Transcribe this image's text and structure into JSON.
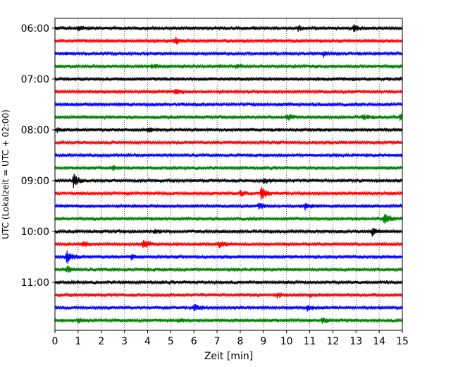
{
  "chart_data": {
    "type": "line",
    "title": "",
    "xlabel": "Zeit  [min]",
    "ylabel": "UTC (Lokalzeit = UTC + 02:00)",
    "xlim": [
      0,
      15
    ],
    "x_ticks": [
      "0",
      "1",
      "2",
      "3",
      "4",
      "5",
      "6",
      "7",
      "8",
      "9",
      "10",
      "11",
      "12",
      "13",
      "14",
      "15"
    ],
    "y_tick_labels": [
      "06:00",
      "07:00",
      "08:00",
      "09:00",
      "10:00",
      "11:00"
    ],
    "grid": "vertical dotted lines at each minute",
    "trace_colors": [
      "#000000",
      "#ff0000",
      "#0000ff",
      "#008000"
    ],
    "traces": [
      {
        "start": "06:00",
        "color": "#000000",
        "events": [
          [
            1.0,
            0.25
          ],
          [
            10.5,
            0.3
          ],
          [
            12.9,
            0.55
          ]
        ]
      },
      {
        "start": "06:15",
        "color": "#ff0000",
        "events": [
          [
            5.2,
            0.5
          ]
        ]
      },
      {
        "start": "06:30",
        "color": "#0000ff",
        "events": [
          [
            11.6,
            0.35
          ]
        ]
      },
      {
        "start": "06:45",
        "color": "#008000",
        "events": [
          [
            4.2,
            0.3
          ],
          [
            7.8,
            0.25
          ]
        ]
      },
      {
        "start": "07:00",
        "color": "#000000",
        "events": []
      },
      {
        "start": "07:15",
        "color": "#ff0000",
        "events": [
          [
            5.2,
            0.3
          ]
        ]
      },
      {
        "start": "07:30",
        "color": "#0000ff",
        "events": []
      },
      {
        "start": "07:45",
        "color": "#008000",
        "events": [
          [
            10.0,
            0.5
          ],
          [
            13.3,
            0.35
          ],
          [
            14.9,
            0.6
          ]
        ]
      },
      {
        "start": "08:00",
        "color": "#000000",
        "events": [
          [
            0.1,
            0.3
          ],
          [
            4.0,
            0.35
          ]
        ]
      },
      {
        "start": "08:15",
        "color": "#ff0000",
        "events": []
      },
      {
        "start": "08:30",
        "color": "#0000ff",
        "events": []
      },
      {
        "start": "08:45",
        "color": "#008000",
        "events": [
          [
            2.5,
            0.25
          ]
        ]
      },
      {
        "start": "09:00",
        "color": "#000000",
        "events": [
          [
            0.8,
            1.0
          ],
          [
            9.0,
            0.35
          ]
        ]
      },
      {
        "start": "09:15",
        "color": "#ff0000",
        "events": [
          [
            8.9,
            1.0
          ],
          [
            8.0,
            0.4
          ]
        ]
      },
      {
        "start": "09:30",
        "color": "#0000ff",
        "events": [
          [
            8.8,
            0.45
          ],
          [
            10.8,
            0.45
          ]
        ]
      },
      {
        "start": "09:45",
        "color": "#008000",
        "events": [
          [
            14.2,
            1.0
          ]
        ]
      },
      {
        "start": "10:00",
        "color": "#000000",
        "events": [
          [
            4.3,
            0.3
          ],
          [
            13.7,
            0.55
          ]
        ]
      },
      {
        "start": "10:15",
        "color": "#ff0000",
        "events": [
          [
            1.2,
            0.5
          ],
          [
            3.8,
            0.65
          ],
          [
            7.1,
            0.4
          ]
        ]
      },
      {
        "start": "10:30",
        "color": "#0000ff",
        "events": [
          [
            0.5,
            1.0
          ],
          [
            3.3,
            0.35
          ]
        ]
      },
      {
        "start": "10:45",
        "color": "#008000",
        "events": [
          [
            0.5,
            0.45
          ]
        ]
      },
      {
        "start": "11:00",
        "color": "#000000",
        "events": []
      },
      {
        "start": "11:15",
        "color": "#ff0000",
        "events": [
          [
            9.6,
            0.3
          ],
          [
            11.0,
            0.3
          ]
        ]
      },
      {
        "start": "11:30",
        "color": "#0000ff",
        "events": [
          [
            6.0,
            0.6
          ],
          [
            10.9,
            0.3
          ]
        ]
      },
      {
        "start": "11:45",
        "color": "#008000",
        "events": [
          [
            1.0,
            0.35
          ],
          [
            5.3,
            0.3
          ],
          [
            11.5,
            0.35
          ]
        ]
      }
    ]
  }
}
